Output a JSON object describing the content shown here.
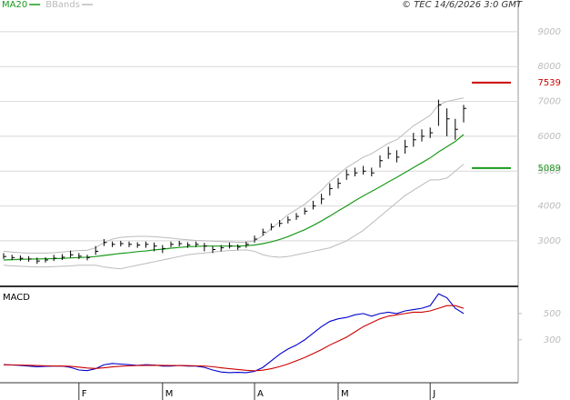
{
  "chart_data": [
    {
      "type": "ohlc",
      "title": "© TEC 14/6/2026 3:0 GMT",
      "color": "#000000",
      "high": [
        2650,
        2600,
        2580,
        2560,
        2520,
        2530,
        2600,
        2620,
        2720,
        2650,
        2600,
        2850,
        3050,
        2980,
        3000,
        2980,
        2960,
        2980,
        2950,
        2880,
        2980,
        3000,
        2960,
        2980,
        2940,
        2850,
        2880,
        2950,
        2900,
        2980,
        3150,
        3350,
        3500,
        3600,
        3700,
        3800,
        3950,
        4150,
        4350,
        4650,
        4800,
        5050,
        5100,
        5150,
        5100,
        5450,
        5700,
        5600,
        5900,
        6100,
        6200,
        6250,
        7050,
        6800,
        6500,
        6900
      ],
      "low": [
        2480,
        2450,
        2420,
        2400,
        2340,
        2380,
        2420,
        2450,
        2520,
        2480,
        2440,
        2600,
        2850,
        2820,
        2840,
        2820,
        2800,
        2800,
        2700,
        2650,
        2820,
        2840,
        2800,
        2820,
        2700,
        2650,
        2700,
        2780,
        2740,
        2800,
        2950,
        3150,
        3300,
        3400,
        3500,
        3600,
        3750,
        3900,
        4050,
        4300,
        4500,
        4750,
        4850,
        4900,
        4850,
        5100,
        5350,
        5250,
        5500,
        5700,
        5850,
        5950,
        6300,
        6000,
        5900,
        6400
      ],
      "close": [
        2550,
        2520,
        2500,
        2480,
        2420,
        2450,
        2500,
        2530,
        2600,
        2560,
        2520,
        2700,
        2950,
        2900,
        2920,
        2900,
        2880,
        2900,
        2850,
        2780,
        2900,
        2920,
        2880,
        2900,
        2850,
        2750,
        2800,
        2850,
        2820,
        2900,
        3050,
        3250,
        3400,
        3500,
        3600,
        3700,
        3850,
        4000,
        4200,
        4500,
        4650,
        4900,
        4950,
        5000,
        4950,
        5300,
        5500,
        5400,
        5700,
        5900,
        6000,
        6100,
        6900,
        6500,
        6200,
        6800
      ],
      "series": [
        {
          "name": "MA20",
          "color": "#1a9a1a",
          "values": [
            2450,
            2460,
            2470,
            2475,
            2480,
            2485,
            2490,
            2495,
            2510,
            2520,
            2530,
            2550,
            2580,
            2610,
            2640,
            2660,
            2690,
            2710,
            2740,
            2760,
            2790,
            2810,
            2830,
            2840,
            2850,
            2850,
            2850,
            2850,
            2850,
            2860,
            2880,
            2920,
            2970,
            3040,
            3120,
            3220,
            3320,
            3440,
            3570,
            3710,
            3860,
            4000,
            4150,
            4290,
            4420,
            4550,
            4690,
            4820,
            4960,
            5100,
            5240,
            5380,
            5550,
            5700,
            5850,
            6050
          ]
        }
      ],
      "bands": {
        "name": "BBands",
        "color": "#bbbbbb",
        "upper": [
          2700,
          2680,
          2660,
          2650,
          2650,
          2650,
          2660,
          2680,
          2700,
          2720,
          2730,
          2800,
          2950,
          3050,
          3100,
          3120,
          3130,
          3130,
          3120,
          3100,
          3080,
          3050,
          3030,
          3010,
          3000,
          2990,
          2980,
          2970,
          2960,
          2960,
          3000,
          3150,
          3350,
          3550,
          3750,
          3900,
          4050,
          4250,
          4450,
          4700,
          4900,
          5100,
          5250,
          5400,
          5500,
          5650,
          5800,
          5900,
          6100,
          6300,
          6450,
          6600,
          6900,
          7000,
          7050,
          7100
        ],
        "lower": [
          2300,
          2280,
          2270,
          2260,
          2250,
          2250,
          2260,
          2270,
          2280,
          2300,
          2300,
          2300,
          2250,
          2220,
          2200,
          2250,
          2300,
          2350,
          2400,
          2450,
          2500,
          2550,
          2600,
          2630,
          2650,
          2680,
          2700,
          2720,
          2730,
          2740,
          2700,
          2600,
          2550,
          2530,
          2550,
          2600,
          2650,
          2700,
          2750,
          2800,
          2900,
          3000,
          3150,
          3300,
          3500,
          3700,
          3900,
          4100,
          4300,
          4450,
          4600,
          4750,
          4750,
          4800,
          5000,
          5200
        ]
      },
      "levels": [
        {
          "value": 7539,
          "color": "#cc0000"
        },
        {
          "value": 5089,
          "color": "#1a9a1a"
        }
      ],
      "ylim": [
        1720,
        9910
      ],
      "yticks": [
        3000,
        4000,
        5000,
        6000,
        7000,
        8000,
        9000
      ],
      "grid": true
    },
    {
      "type": "line",
      "title": "MACD",
      "categories": [
        null,
        null,
        null,
        null,
        null,
        null,
        null,
        null,
        null,
        "F",
        null,
        null,
        null,
        null,
        null,
        null,
        null,
        null,
        null,
        "M",
        null,
        null,
        null,
        null,
        null,
        null,
        null,
        null,
        null,
        null,
        "A",
        null,
        null,
        null,
        null,
        null,
        null,
        null,
        null,
        null,
        "M",
        null,
        null,
        null,
        null,
        null,
        null,
        null,
        null,
        null,
        null,
        "J",
        null,
        null,
        null,
        null
      ],
      "series": [
        {
          "color": "#0000cc",
          "values": [
            110,
            108,
            105,
            100,
            95,
            98,
            100,
            100,
            90,
            70,
            65,
            80,
            110,
            120,
            115,
            110,
            105,
            110,
            108,
            100,
            100,
            105,
            100,
            100,
            90,
            70,
            55,
            50,
            52,
            50,
            60,
            90,
            140,
            190,
            230,
            260,
            300,
            350,
            400,
            440,
            460,
            470,
            490,
            500,
            480,
            500,
            510,
            500,
            520,
            530,
            540,
            560,
            650,
            620,
            540,
            500
          ]
        },
        {
          "color": "#cc0000",
          "values": [
            110,
            109,
            108,
            106,
            104,
            102,
            101,
            100,
            98,
            92,
            85,
            82,
            87,
            94,
            99,
            102,
            104,
            105,
            106,
            105,
            104,
            104,
            103,
            102,
            100,
            95,
            87,
            80,
            74,
            68,
            64,
            69,
            80,
            96,
            116,
            140,
            165,
            195,
            225,
            260,
            290,
            320,
            360,
            400,
            430,
            460,
            480,
            490,
            500,
            510,
            510,
            520,
            540,
            560,
            560,
            540
          ]
        }
      ],
      "ylim": [
        -20,
        700
      ],
      "yticks": [
        300,
        500
      ],
      "grid": false
    }
  ]
}
